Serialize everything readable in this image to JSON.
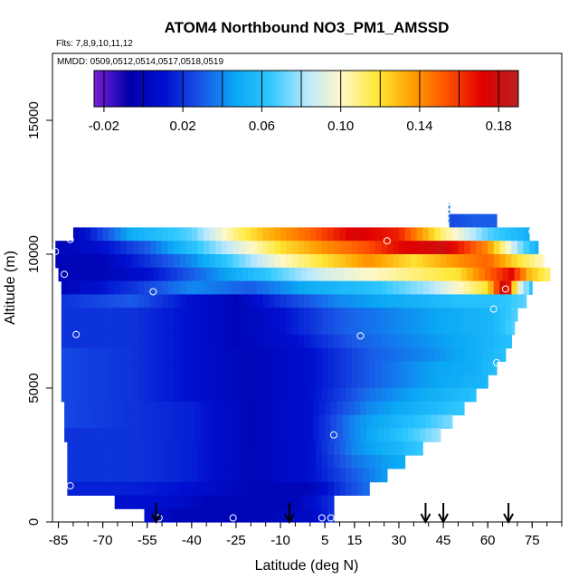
{
  "chart_data": {
    "type": "heatmap",
    "title": "ATOM4 Northbound NO3_PM1_AMSSD",
    "subtitle_flights": "Flts: 7,8,9,10,11,12",
    "subtitle_dates": "MMDD: 0509,0512,0514,0517,0518,0519",
    "xlabel": "Latitude (deg N)",
    "ylabel": "Altitude (m)",
    "xlim": [
      -87,
      85
    ],
    "ylim": [
      0,
      17500
    ],
    "x_ticks": [
      -85,
      -70,
      -55,
      -40,
      -25,
      -10,
      5,
      15,
      30,
      45,
      60,
      75
    ],
    "y_ticks": [
      0,
      5000,
      10000,
      15000
    ],
    "colorbar": {
      "min": -0.025,
      "max": 0.19,
      "tick_values": [
        -0.02,
        0.02,
        0.06,
        0.1,
        0.14,
        0.18
      ],
      "tick_labels": [
        "-0.02",
        "0.02",
        "0.06",
        "0.10",
        "0.14",
        "0.18"
      ],
      "colors": [
        "#7a20d8",
        "#0000a8",
        "#0010d0",
        "#1a55e6",
        "#0aa8f5",
        "#30c8ff",
        "#b8e8ff",
        "#fff8c8",
        "#ffe838",
        "#ffa000",
        "#ff5000",
        "#e00000",
        "#b82020"
      ]
    },
    "layers": [
      {
        "alt": 11000,
        "lat_min": 47,
        "lat_max": 63,
        "profile": [
          [
            47,
            0.025
          ],
          [
            55,
            0.03
          ],
          [
            63,
            0.03
          ]
        ]
      },
      {
        "alt": 10500,
        "lat_min": -80,
        "lat_max": 74,
        "profile": [
          [
            -80,
            0.0
          ],
          [
            -60,
            0.05
          ],
          [
            -40,
            0.07
          ],
          [
            -25,
            0.11
          ],
          [
            -15,
            0.13
          ],
          [
            0,
            0.15
          ],
          [
            15,
            0.175
          ],
          [
            30,
            0.165
          ],
          [
            45,
            0.11
          ],
          [
            60,
            0.07
          ],
          [
            74,
            0.05
          ]
        ]
      },
      {
        "alt": 10000,
        "lat_min": -86,
        "lat_max": 77,
        "profile": [
          [
            -86,
            0.0
          ],
          [
            -70,
            0.01
          ],
          [
            -55,
            0.03
          ],
          [
            -40,
            0.06
          ],
          [
            -25,
            0.09
          ],
          [
            -10,
            0.12
          ],
          [
            5,
            0.14
          ],
          [
            20,
            0.155
          ],
          [
            30,
            0.17
          ],
          [
            45,
            0.18
          ],
          [
            60,
            0.14
          ],
          [
            70,
            0.08
          ],
          [
            77,
            0.05
          ]
        ]
      },
      {
        "alt": 9500,
        "lat_min": -86,
        "lat_max": 79,
        "profile": [
          [
            -86,
            0.0
          ],
          [
            -70,
            0.0
          ],
          [
            -55,
            0.02
          ],
          [
            -40,
            0.04
          ],
          [
            -25,
            0.07
          ],
          [
            -10,
            0.1
          ],
          [
            5,
            0.12
          ],
          [
            20,
            0.14
          ],
          [
            35,
            0.12
          ],
          [
            50,
            0.14
          ],
          [
            60,
            0.15
          ],
          [
            70,
            0.12
          ],
          [
            79,
            0.1
          ]
        ]
      },
      {
        "alt": 9000,
        "lat_min": -85,
        "lat_max": 81,
        "profile": [
          [
            -85,
            0.0
          ],
          [
            -70,
            0.0
          ],
          [
            -55,
            0.01
          ],
          [
            -40,
            0.03
          ],
          [
            -25,
            0.05
          ],
          [
            -10,
            0.07
          ],
          [
            5,
            0.09
          ],
          [
            20,
            0.1
          ],
          [
            35,
            0.11
          ],
          [
            50,
            0.12
          ],
          [
            60,
            0.15
          ],
          [
            68,
            0.17
          ],
          [
            74,
            0.13
          ],
          [
            81,
            0.11
          ]
        ]
      },
      {
        "alt": 8500,
        "lat_min": -84,
        "lat_max": 75,
        "profile": [
          [
            -84,
            0.0
          ],
          [
            -60,
            0.02
          ],
          [
            -40,
            0.04
          ],
          [
            -20,
            0.03
          ],
          [
            0,
            0.05
          ],
          [
            20,
            0.06
          ],
          [
            40,
            0.08
          ],
          [
            60,
            0.12
          ],
          [
            66,
            0.19
          ],
          [
            70,
            0.1
          ],
          [
            75,
            0.06
          ]
        ]
      },
      {
        "alt": 8000,
        "lat_min": -84,
        "lat_max": 73,
        "profile": [
          [
            -84,
            0.02
          ],
          [
            -60,
            0.03
          ],
          [
            -40,
            0.01
          ],
          [
            -25,
            0.0
          ],
          [
            -10,
            0.02
          ],
          [
            10,
            0.04
          ],
          [
            30,
            0.05
          ],
          [
            50,
            0.06
          ],
          [
            62,
            0.06
          ],
          [
            73,
            0.07
          ]
        ]
      },
      {
        "alt": 7500,
        "lat_min": -84,
        "lat_max": 70,
        "profile": [
          [
            -84,
            0.02
          ],
          [
            -60,
            0.02
          ],
          [
            -40,
            0.01
          ],
          [
            -25,
            0.0
          ],
          [
            -10,
            0.01
          ],
          [
            10,
            0.03
          ],
          [
            30,
            0.04
          ],
          [
            50,
            0.05
          ],
          [
            62,
            0.055
          ],
          [
            70,
            0.07
          ]
        ]
      },
      {
        "alt": 7000,
        "lat_min": -84,
        "lat_max": 69,
        "profile": [
          [
            -84,
            0.02
          ],
          [
            -60,
            0.02
          ],
          [
            -40,
            0.01
          ],
          [
            -25,
            0.0
          ],
          [
            -10,
            0.01
          ],
          [
            10,
            0.03
          ],
          [
            30,
            0.04
          ],
          [
            50,
            0.05
          ],
          [
            62,
            0.055
          ],
          [
            69,
            0.07
          ]
        ]
      },
      {
        "alt": 6500,
        "lat_min": -84,
        "lat_max": 68,
        "profile": [
          [
            -84,
            0.02
          ],
          [
            -60,
            0.02
          ],
          [
            -40,
            0.01
          ],
          [
            -25,
            0.0
          ],
          [
            -5,
            0.01
          ],
          [
            15,
            0.03
          ],
          [
            35,
            0.04
          ],
          [
            55,
            0.05
          ],
          [
            68,
            0.06
          ]
        ]
      },
      {
        "alt": 6000,
        "lat_min": -84,
        "lat_max": 66,
        "profile": [
          [
            -84,
            0.025
          ],
          [
            -60,
            0.02
          ],
          [
            -40,
            0.01
          ],
          [
            -20,
            0.0
          ],
          [
            0,
            0.01
          ],
          [
            20,
            0.03
          ],
          [
            40,
            0.04
          ],
          [
            55,
            0.05
          ],
          [
            66,
            0.06
          ]
        ]
      },
      {
        "alt": 5500,
        "lat_min": -84,
        "lat_max": 63,
        "profile": [
          [
            -84,
            0.025
          ],
          [
            -60,
            0.02
          ],
          [
            -40,
            0.01
          ],
          [
            -20,
            0.0
          ],
          [
            0,
            0.01
          ],
          [
            20,
            0.03
          ],
          [
            40,
            0.045
          ],
          [
            55,
            0.05
          ],
          [
            63,
            0.06
          ]
        ]
      },
      {
        "alt": 5000,
        "lat_min": -84,
        "lat_max": 60,
        "profile": [
          [
            -84,
            0.025
          ],
          [
            -60,
            0.02
          ],
          [
            -40,
            0.01
          ],
          [
            -20,
            0.0
          ],
          [
            0,
            0.01
          ],
          [
            20,
            0.03
          ],
          [
            40,
            0.045
          ],
          [
            60,
            0.055
          ]
        ]
      },
      {
        "alt": 4500,
        "lat_min": -84,
        "lat_max": 56,
        "profile": [
          [
            -84,
            0.025
          ],
          [
            -60,
            0.02
          ],
          [
            -40,
            0.01
          ],
          [
            -20,
            0.0
          ],
          [
            0,
            0.01
          ],
          [
            20,
            0.035
          ],
          [
            40,
            0.05
          ],
          [
            56,
            0.06
          ]
        ]
      },
      {
        "alt": 4000,
        "lat_min": -83,
        "lat_max": 52,
        "profile": [
          [
            -83,
            0.025
          ],
          [
            -60,
            0.02
          ],
          [
            -40,
            0.015
          ],
          [
            -20,
            0.0
          ],
          [
            0,
            0.01
          ],
          [
            20,
            0.04
          ],
          [
            40,
            0.055
          ],
          [
            52,
            0.065
          ]
        ]
      },
      {
        "alt": 3500,
        "lat_min": -83,
        "lat_max": 48,
        "profile": [
          [
            -83,
            0.025
          ],
          [
            -60,
            0.02
          ],
          [
            -40,
            0.015
          ],
          [
            -20,
            0.0
          ],
          [
            0,
            0.01
          ],
          [
            15,
            0.04
          ],
          [
            35,
            0.06
          ],
          [
            48,
            0.075
          ]
        ]
      },
      {
        "alt": 3000,
        "lat_min": -83,
        "lat_max": 44,
        "profile": [
          [
            -83,
            0.02
          ],
          [
            -60,
            0.02
          ],
          [
            -40,
            0.015
          ],
          [
            -20,
            0.0
          ],
          [
            0,
            0.01
          ],
          [
            15,
            0.04
          ],
          [
            30,
            0.06
          ],
          [
            44,
            0.08
          ]
        ]
      },
      {
        "alt": 2500,
        "lat_min": -82,
        "lat_max": 38,
        "profile": [
          [
            -82,
            0.02
          ],
          [
            -60,
            0.02
          ],
          [
            -40,
            0.015
          ],
          [
            -20,
            0.0
          ],
          [
            0,
            0.01
          ],
          [
            15,
            0.04
          ],
          [
            30,
            0.055
          ],
          [
            38,
            0.065
          ]
        ]
      },
      {
        "alt": 2000,
        "lat_min": -82,
        "lat_max": 32,
        "profile": [
          [
            -82,
            0.02
          ],
          [
            -60,
            0.02
          ],
          [
            -40,
            0.015
          ],
          [
            -20,
            0.0
          ],
          [
            0,
            0.01
          ],
          [
            15,
            0.035
          ],
          [
            32,
            0.05
          ]
        ]
      },
      {
        "alt": 1500,
        "lat_min": -82,
        "lat_max": 26,
        "profile": [
          [
            -82,
            0.02
          ],
          [
            -60,
            0.02
          ],
          [
            -40,
            0.015
          ],
          [
            -20,
            0.0
          ],
          [
            0,
            0.01
          ],
          [
            15,
            0.03
          ],
          [
            26,
            0.045
          ]
        ]
      },
      {
        "alt": 1000,
        "lat_min": -82,
        "lat_max": 20,
        "profile": [
          [
            -82,
            0.015
          ],
          [
            -60,
            0.015
          ],
          [
            -40,
            0.01
          ],
          [
            -20,
            0.0
          ],
          [
            0,
            0.0
          ],
          [
            10,
            0.02
          ],
          [
            20,
            0.035
          ]
        ]
      },
      {
        "alt": 500,
        "lat_min": -66,
        "lat_max": 8,
        "profile": [
          [
            -66,
            0.01
          ],
          [
            -50,
            0.01
          ],
          [
            -35,
            0.0
          ],
          [
            -20,
            0.0
          ],
          [
            -5,
            0.0
          ],
          [
            8,
            0.02
          ]
        ]
      },
      {
        "alt": 0,
        "lat_min": -56,
        "lat_max": 8,
        "profile": [
          [
            -56,
            0.01
          ],
          [
            -45,
            0.0
          ],
          [
            -30,
            0.0
          ],
          [
            -15,
            0.0
          ],
          [
            0,
            0.005
          ],
          [
            8,
            0.02
          ]
        ]
      }
    ],
    "points": [
      {
        "lat": -86,
        "alt": 10100
      },
      {
        "lat": -81,
        "alt": 10550
      },
      {
        "lat": -83,
        "alt": 9250
      },
      {
        "lat": -53,
        "alt": 8600
      },
      {
        "lat": -79,
        "alt": 7000
      },
      {
        "lat": 17,
        "alt": 6950
      },
      {
        "lat": 26,
        "alt": 10500
      },
      {
        "lat": 66,
        "alt": 8700
      },
      {
        "lat": 62,
        "alt": 7950
      },
      {
        "lat": 63,
        "alt": 5950
      },
      {
        "lat": 8,
        "alt": 3250
      },
      {
        "lat": -81,
        "alt": 1350
      },
      {
        "lat": -51,
        "alt": 150
      },
      {
        "lat": -26,
        "alt": 150
      },
      {
        "lat": 4,
        "alt": 150
      },
      {
        "lat": 7,
        "alt": 150
      },
      {
        "lat": 75,
        "alt": 10850
      }
    ],
    "arrows": [
      -52,
      -7,
      39,
      45,
      67
    ],
    "spike": {
      "lat": 47,
      "alt_min": 11200,
      "alt_max": 11900
    }
  }
}
